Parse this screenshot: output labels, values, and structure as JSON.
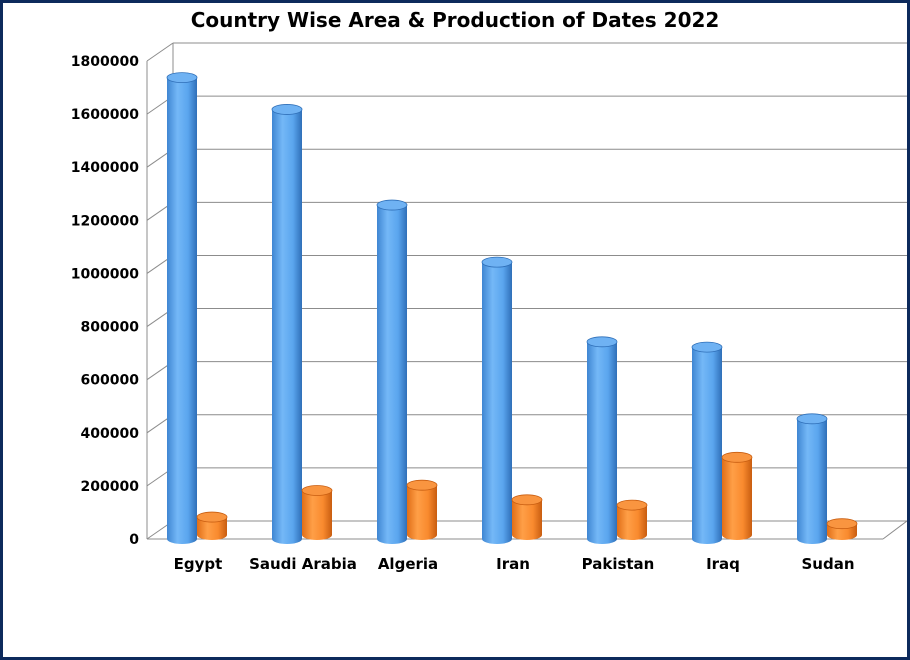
{
  "chart_data": {
    "type": "bar",
    "title": "Country Wise Area & Production of Dates 2022",
    "xlabel": "",
    "ylabel": "",
    "categories": [
      "Egypt",
      "Saudi Arabia",
      "Algeria",
      "Iran",
      "Pakistan",
      "Iraq",
      "Sudan"
    ],
    "series": [
      {
        "values": [
          1730000,
          1610000,
          1250000,
          1035000,
          735000,
          715000,
          445000
        ]
      },
      {
        "values": [
          60000,
          160000,
          180000,
          125000,
          105000,
          285000,
          35000
        ]
      }
    ],
    "ylim": [
      0,
      1800000
    ],
    "yticks": [
      "0",
      "200000",
      "400000",
      "600000",
      "800000",
      "1000000",
      "1200000",
      "1400000",
      "1600000",
      "1800000"
    ],
    "grid": true,
    "style": "3d-cylinder",
    "colors": [
      "#5aa5ee",
      "#f98a2e"
    ],
    "border_color": "#0d2a5c"
  }
}
